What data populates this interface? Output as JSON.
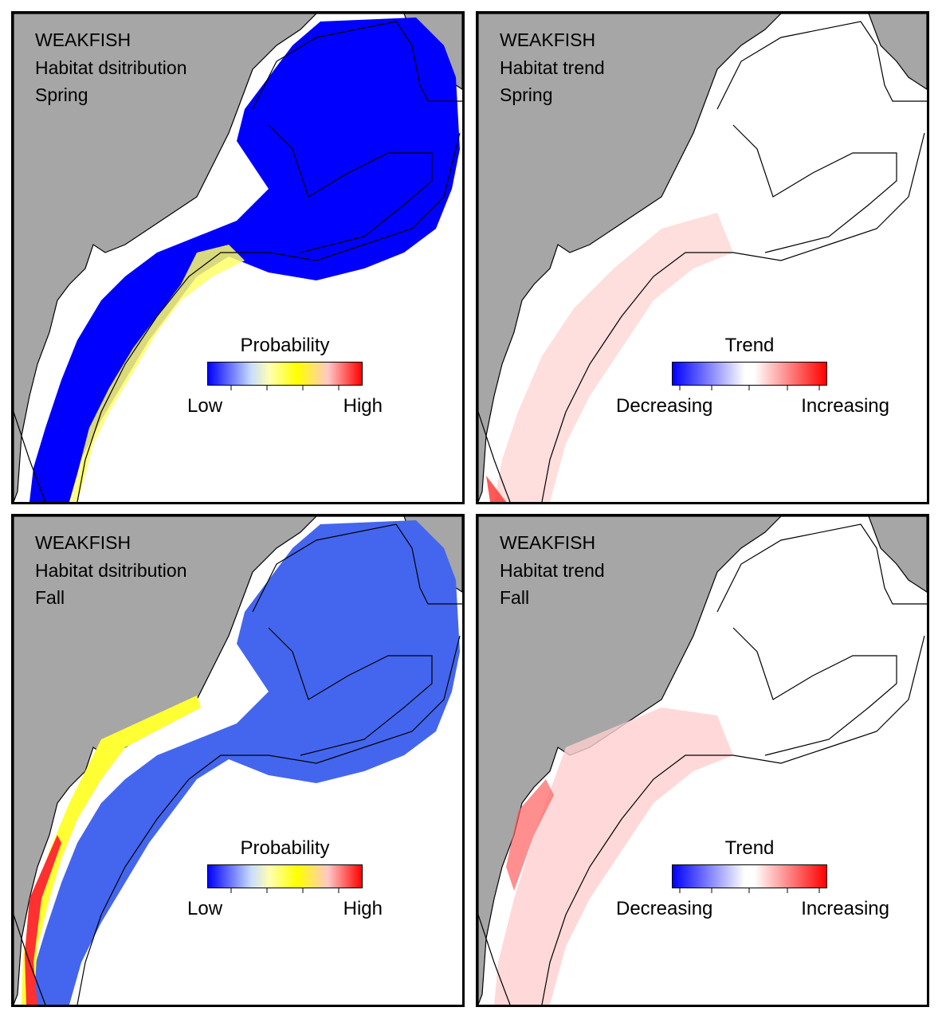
{
  "colors": {
    "land": "#a6a6a6",
    "water": "#ffffff",
    "habitat_low": "#0000ff",
    "habitat_mid": "#ffff00",
    "habitat_high": "#ff0000",
    "trend_decreasing": "#0000ff",
    "trend_increasing": "#ff0000"
  },
  "panels": [
    {
      "species": "WEAKFISH",
      "metric": "Habitat dsitribution",
      "season": "Spring",
      "legend": {
        "title": "Probability",
        "low_label": "Low",
        "high_label": "High"
      }
    },
    {
      "species": "WEAKFISH",
      "metric": "Habitat trend",
      "season": "Spring",
      "legend": {
        "title": "Trend",
        "low_label": "Decreasing",
        "high_label": "Increasing"
      }
    },
    {
      "species": "WEAKFISH",
      "metric": "Habitat dsitribution",
      "season": "Fall",
      "legend": {
        "title": "Probability",
        "low_label": "Low",
        "high_label": "High"
      }
    },
    {
      "species": "WEAKFISH",
      "metric": "Habitat trend",
      "season": "Fall",
      "legend": {
        "title": "Trend",
        "low_label": "Decreasing",
        "high_label": "Increasing"
      }
    }
  ]
}
